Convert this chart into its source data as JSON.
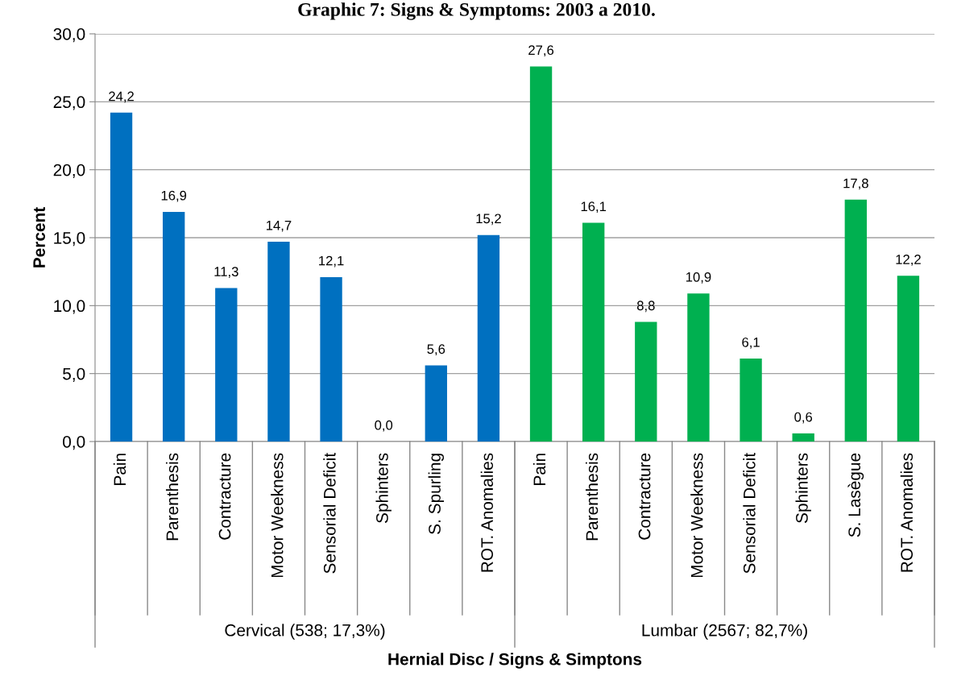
{
  "chart_data": {
    "type": "bar",
    "title": "Graphic 7: Signs & Symptoms: 2003 a 2010.",
    "xlabel": "Hernial Disc / Signs & Simptons",
    "ylabel": "Percent",
    "categories": [
      "Pain",
      "Parenthesis",
      "Contracture",
      "Motor Weekness",
      "Sensorial Deficit",
      "Sphinters",
      "S. Spurling",
      "ROT. Anomalies",
      "Pain",
      "Parenthesis",
      "Contracture",
      "Motor Weekness",
      "Sensorial Deficit",
      "Sphinters",
      "S. Lasègue",
      "ROT. Anomalies"
    ],
    "values": [
      24.2,
      16.9,
      11.3,
      14.7,
      12.1,
      0.0,
      5.6,
      15.2,
      27.6,
      16.1,
      8.8,
      10.9,
      6.1,
      0.6,
      17.8,
      12.2
    ],
    "colors": [
      "#0070c0",
      "#0070c0",
      "#0070c0",
      "#0070c0",
      "#0070c0",
      "#0070c0",
      "#0070c0",
      "#0070c0",
      "#00b050",
      "#00b050",
      "#00b050",
      "#00b050",
      "#00b050",
      "#00b050",
      "#00b050",
      "#00b050"
    ],
    "value_labels": [
      "24,2",
      "16,9",
      "11,3",
      "14,7",
      "12,1",
      "0,0",
      "5,6",
      "15,2",
      "27,6",
      "16,1",
      "8,8",
      "10,9",
      "6,1",
      "0,6",
      "17,8",
      "12,2"
    ],
    "annotations": [
      "Cervical (538; 17,3%)",
      "Lumbar (2567; 82,7%)"
    ],
    "ylim": [
      0,
      30
    ],
    "yticks": [
      {
        "value": 0,
        "label": "0,0"
      },
      {
        "value": 5,
        "label": "5,0"
      },
      {
        "value": 10,
        "label": "10,0"
      },
      {
        "value": 15,
        "label": "15,0"
      },
      {
        "value": 20,
        "label": "20,0"
      },
      {
        "value": 25,
        "label": "25,0"
      },
      {
        "value": 30,
        "label": "30,0"
      }
    ],
    "grid": "y"
  }
}
